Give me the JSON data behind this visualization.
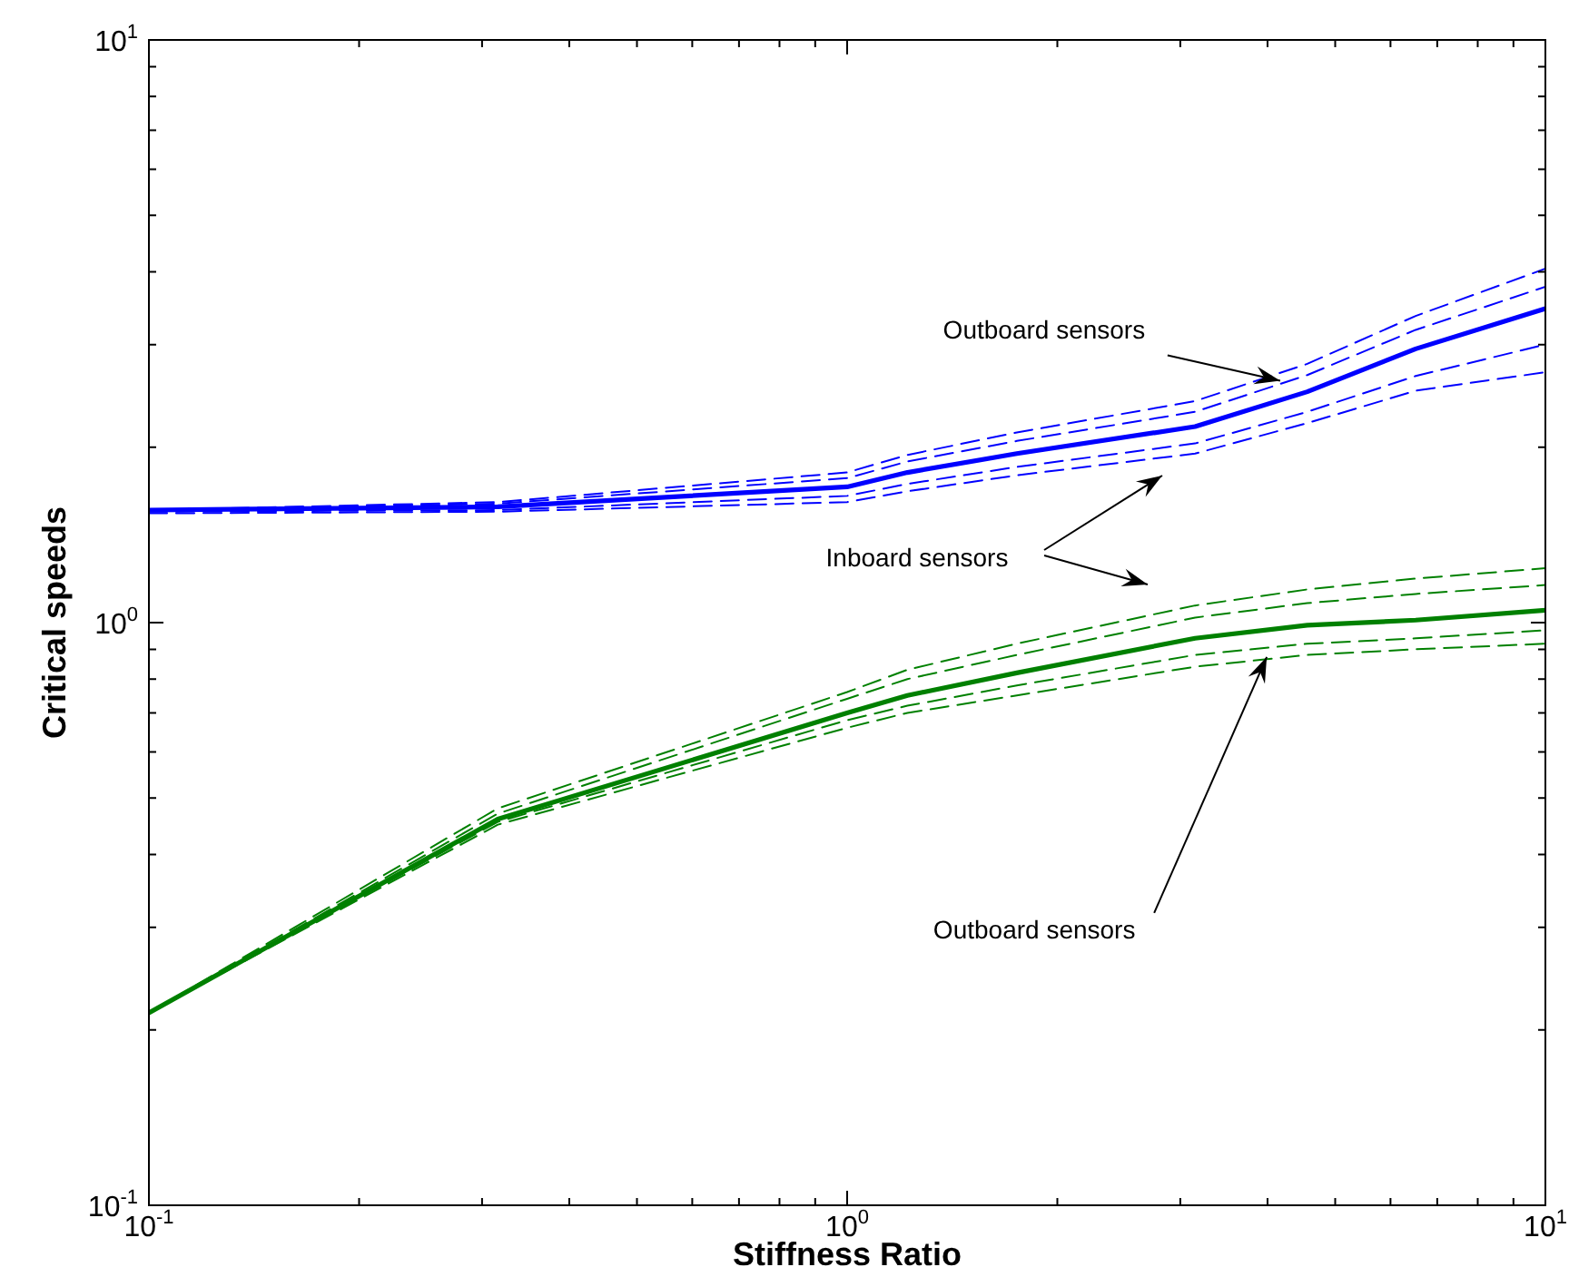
{
  "chart_data": {
    "type": "line",
    "xlabel": "Stiffness Ratio",
    "ylabel": "Critical speeds",
    "log": "xy",
    "legend": false,
    "marker": "none",
    "x": [
      0.1,
      0.316,
      1,
      1.22,
      1.75,
      3.15,
      4.56,
      6.52,
      10
    ],
    "series": [
      {
        "color": "#0000ff",
        "line_style": "solid",
        "values": [
          1.56,
          1.58,
          1.71,
          1.81,
          1.95,
          2.17,
          2.49,
          2.95,
          3.46
        ]
      },
      {
        "color": "#0000ff",
        "line_style": "dashed",
        "values": [
          1.56,
          1.6,
          1.77,
          1.89,
          2.05,
          2.3,
          2.66,
          3.18,
          3.77
        ]
      },
      {
        "color": "#0000ff",
        "line_style": "dashed",
        "values": [
          1.56,
          1.61,
          1.81,
          1.94,
          2.12,
          2.4,
          2.78,
          3.36,
          4.05
        ]
      },
      {
        "color": "#0000ff",
        "line_style": "dashed",
        "values": [
          1.55,
          1.56,
          1.65,
          1.73,
          1.85,
          2.03,
          2.3,
          2.65,
          3.0
        ]
      },
      {
        "color": "#0000ff",
        "line_style": "dashed",
        "values": [
          1.54,
          1.55,
          1.61,
          1.68,
          1.79,
          1.95,
          2.2,
          2.5,
          2.69
        ]
      },
      {
        "color": "#008000",
        "line_style": "solid",
        "values": [
          0.214,
          0.46,
          0.7,
          0.75,
          0.82,
          0.94,
          0.99,
          1.01,
          1.05
        ]
      },
      {
        "color": "#008000",
        "line_style": "dashed",
        "values": [
          0.214,
          0.47,
          0.74,
          0.8,
          0.88,
          1.02,
          1.08,
          1.12,
          1.16
        ]
      },
      {
        "color": "#008000",
        "line_style": "dashed",
        "values": [
          0.214,
          0.48,
          0.76,
          0.83,
          0.92,
          1.07,
          1.14,
          1.19,
          1.24
        ]
      },
      {
        "color": "#008000",
        "line_style": "dashed",
        "values": [
          0.214,
          0.455,
          0.68,
          0.72,
          0.78,
          0.88,
          0.92,
          0.94,
          0.97
        ]
      },
      {
        "color": "#008000",
        "line_style": "dashed",
        "values": [
          0.214,
          0.45,
          0.66,
          0.7,
          0.75,
          0.84,
          0.88,
          0.9,
          0.92
        ]
      }
    ],
    "xlim": [
      0.1,
      10
    ],
    "ylim": [
      0.1,
      10
    ],
    "xticks": [
      {
        "value": 0.1,
        "label": "10$^{-1}$"
      },
      {
        "value": 0.2,
        "label": null
      },
      {
        "value": 0.3,
        "label": null
      },
      {
        "value": 0.4,
        "label": null
      },
      {
        "value": 0.5,
        "label": null
      },
      {
        "value": 0.6,
        "label": null
      },
      {
        "value": 0.7,
        "label": null
      },
      {
        "value": 0.8,
        "label": null
      },
      {
        "value": 0.9,
        "label": null
      },
      {
        "value": 1,
        "label": "10$^{0}$"
      },
      {
        "value": 2,
        "label": null
      },
      {
        "value": 3,
        "label": null
      },
      {
        "value": 4,
        "label": null
      },
      {
        "value": 5,
        "label": null
      },
      {
        "value": 6,
        "label": null
      },
      {
        "value": 7,
        "label": null
      },
      {
        "value": 8,
        "label": null
      },
      {
        "value": 9,
        "label": null
      },
      {
        "value": 10,
        "label": "10$^{1}$"
      }
    ],
    "yticks": [
      {
        "value": 0.1,
        "label": "10$^{-1}$"
      },
      {
        "value": 0.2,
        "label": null
      },
      {
        "value": 0.3,
        "label": null
      },
      {
        "value": 0.4,
        "label": null
      },
      {
        "value": 0.5,
        "label": null
      },
      {
        "value": 0.6,
        "label": null
      },
      {
        "value": 0.7,
        "label": null
      },
      {
        "value": 0.8,
        "label": null
      },
      {
        "value": 0.9,
        "label": null
      },
      {
        "value": 1,
        "label": "10$^{0}$"
      },
      {
        "value": 2,
        "label": null
      },
      {
        "value": 3,
        "label": null
      },
      {
        "value": 4,
        "label": null
      },
      {
        "value": 5,
        "label": null
      },
      {
        "value": 6,
        "label": null
      },
      {
        "value": 7,
        "label": null
      },
      {
        "value": 8,
        "label": null
      },
      {
        "value": 9,
        "label": null
      },
      {
        "value": 10,
        "label": "10$^{1}$"
      }
    ],
    "annotations": [
      {
        "text": "Outboard sensors",
        "x": 4.17,
        "y": 2.6
      },
      "Inboard sensors",
      {
        "text": "Outboard sensors",
        "x": 3.99,
        "y": 0.873
      }
    ]
  }
}
